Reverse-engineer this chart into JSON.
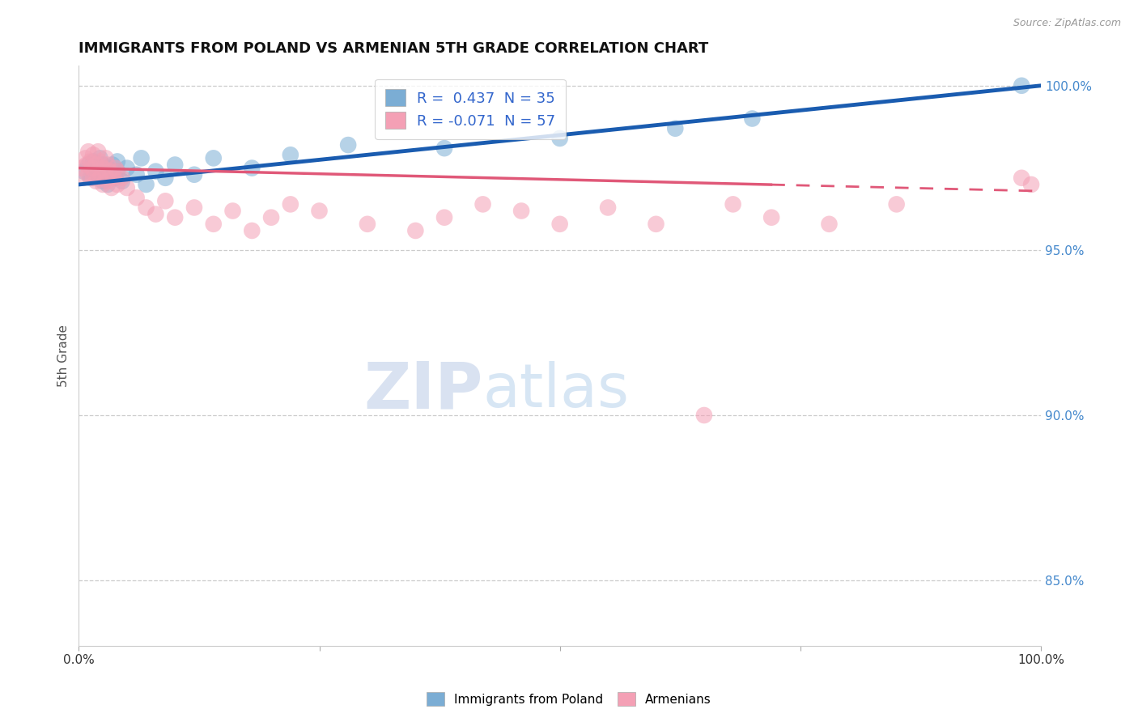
{
  "title": "IMMIGRANTS FROM POLAND VS ARMENIAN 5TH GRADE CORRELATION CHART",
  "source_text": "Source: ZipAtlas.com",
  "ylabel": "5th Grade",
  "watermark_zip": "ZIP",
  "watermark_atlas": "atlas",
  "legend_blue_label": "R =  0.437  N = 35",
  "legend_pink_label": "R = -0.071  N = 57",
  "legend_blue_series": "Immigrants from Poland",
  "legend_pink_series": "Armenians",
  "xlim": [
    0.0,
    1.0
  ],
  "ylim": [
    0.83,
    1.006
  ],
  "yticks": [
    0.85,
    0.9,
    0.95,
    1.0
  ],
  "ytick_labels": [
    "85.0%",
    "90.0%",
    "95.0%",
    "100.0%"
  ],
  "xticks": [
    0.0,
    0.25,
    0.5,
    0.75,
    1.0
  ],
  "xtick_labels": [
    "0.0%",
    "",
    "",
    "",
    "100.0%"
  ],
  "blue_color": "#7BADD4",
  "pink_color": "#F4A0B5",
  "blue_line_color": "#1A5CB0",
  "pink_line_color": "#E05878",
  "background_color": "#ffffff",
  "blue_x": [
    0.005,
    0.01,
    0.012,
    0.015,
    0.018,
    0.02,
    0.022,
    0.025,
    0.025,
    0.028,
    0.03,
    0.03,
    0.032,
    0.035,
    0.038,
    0.04,
    0.04,
    0.045,
    0.05,
    0.06,
    0.065,
    0.07,
    0.08,
    0.09,
    0.1,
    0.12,
    0.14,
    0.18,
    0.22,
    0.28,
    0.38,
    0.5,
    0.62,
    0.7,
    0.98
  ],
  "blue_y": [
    0.974,
    0.976,
    0.972,
    0.977,
    0.975,
    0.973,
    0.978,
    0.971,
    0.976,
    0.974,
    0.97,
    0.975,
    0.973,
    0.976,
    0.972,
    0.974,
    0.977,
    0.971,
    0.975,
    0.973,
    0.978,
    0.97,
    0.974,
    0.972,
    0.976,
    0.973,
    0.978,
    0.975,
    0.979,
    0.982,
    0.981,
    0.984,
    0.987,
    0.99,
    1.0
  ],
  "pink_x": [
    0.003,
    0.005,
    0.007,
    0.008,
    0.01,
    0.01,
    0.012,
    0.014,
    0.015,
    0.015,
    0.018,
    0.018,
    0.02,
    0.02,
    0.022,
    0.022,
    0.025,
    0.025,
    0.028,
    0.028,
    0.03,
    0.03,
    0.032,
    0.034,
    0.036,
    0.038,
    0.04,
    0.04,
    0.045,
    0.05,
    0.06,
    0.07,
    0.08,
    0.09,
    0.1,
    0.12,
    0.14,
    0.16,
    0.18,
    0.2,
    0.22,
    0.25,
    0.3,
    0.35,
    0.38,
    0.42,
    0.46,
    0.5,
    0.55,
    0.6,
    0.65,
    0.68,
    0.72,
    0.78,
    0.85,
    0.98,
    0.99
  ],
  "pink_y": [
    0.975,
    0.972,
    0.978,
    0.976,
    0.98,
    0.973,
    0.977,
    0.975,
    0.972,
    0.979,
    0.971,
    0.976,
    0.974,
    0.98,
    0.972,
    0.977,
    0.975,
    0.97,
    0.978,
    0.973,
    0.971,
    0.976,
    0.974,
    0.969,
    0.972,
    0.975,
    0.97,
    0.974,
    0.972,
    0.969,
    0.966,
    0.963,
    0.961,
    0.965,
    0.96,
    0.963,
    0.958,
    0.962,
    0.956,
    0.96,
    0.964,
    0.962,
    0.958,
    0.956,
    0.96,
    0.964,
    0.962,
    0.958,
    0.963,
    0.958,
    0.9,
    0.964,
    0.96,
    0.958,
    0.964,
    0.972,
    0.97
  ],
  "pink_line_solid_end": 0.72,
  "blue_line_start_y": 0.97,
  "blue_line_end_y": 1.0,
  "pink_line_start_y": 0.975,
  "pink_line_end_y": 0.968
}
